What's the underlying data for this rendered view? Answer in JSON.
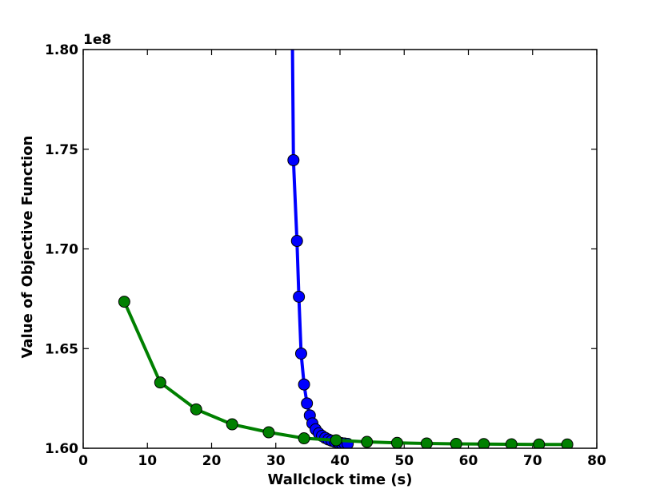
{
  "chart_data": {
    "type": "line",
    "title": "",
    "xlabel": "Wallclock time (s)",
    "ylabel": "Value of Objective Function",
    "offset_label": "1e8",
    "xlim": [
      0,
      80
    ],
    "ylim": [
      1.6,
      1.8
    ],
    "x_ticks": [
      0,
      10,
      20,
      30,
      40,
      50,
      60,
      70,
      80
    ],
    "x_tick_labels": [
      "0",
      "10",
      "20",
      "30",
      "40",
      "50",
      "60",
      "70",
      "80"
    ],
    "y_ticks": [
      1.6,
      1.65,
      1.7,
      1.75,
      1.8
    ],
    "y_tick_labels": [
      "1.60",
      "1.65",
      "1.70",
      "1.75",
      "1.80"
    ],
    "grid": false,
    "series": [
      {
        "color": "#0000ff",
        "line_x": [
          32.6,
          32.75
        ],
        "line_y": [
          1.8,
          1.7445
        ],
        "x": [
          32.75,
          33.3,
          33.6,
          33.95,
          34.4,
          34.85,
          35.3,
          35.7,
          36.2,
          36.7,
          37.2,
          37.7,
          38.2,
          38.7,
          39.2,
          39.7,
          40.2,
          40.7,
          41.2
        ],
        "y": [
          1.7445,
          1.704,
          1.676,
          1.6475,
          1.632,
          1.6225,
          1.6165,
          1.6125,
          1.6095,
          1.6075,
          1.6062,
          1.6052,
          1.6044,
          1.6038,
          1.6033,
          1.6029,
          1.6026,
          1.6024,
          1.6022
        ]
      },
      {
        "color": "#008000",
        "x": [
          6.4,
          12.0,
          17.6,
          23.2,
          28.9,
          34.4,
          39.4,
          44.2,
          48.9,
          53.5,
          58.1,
          62.4,
          66.7,
          71.0,
          75.4
        ],
        "y": [
          1.6735,
          1.633,
          1.6195,
          1.612,
          1.608,
          1.605,
          1.604,
          1.6032,
          1.6027,
          1.6024,
          1.6022,
          1.6021,
          1.602,
          1.6019,
          1.6019
        ]
      }
    ]
  }
}
